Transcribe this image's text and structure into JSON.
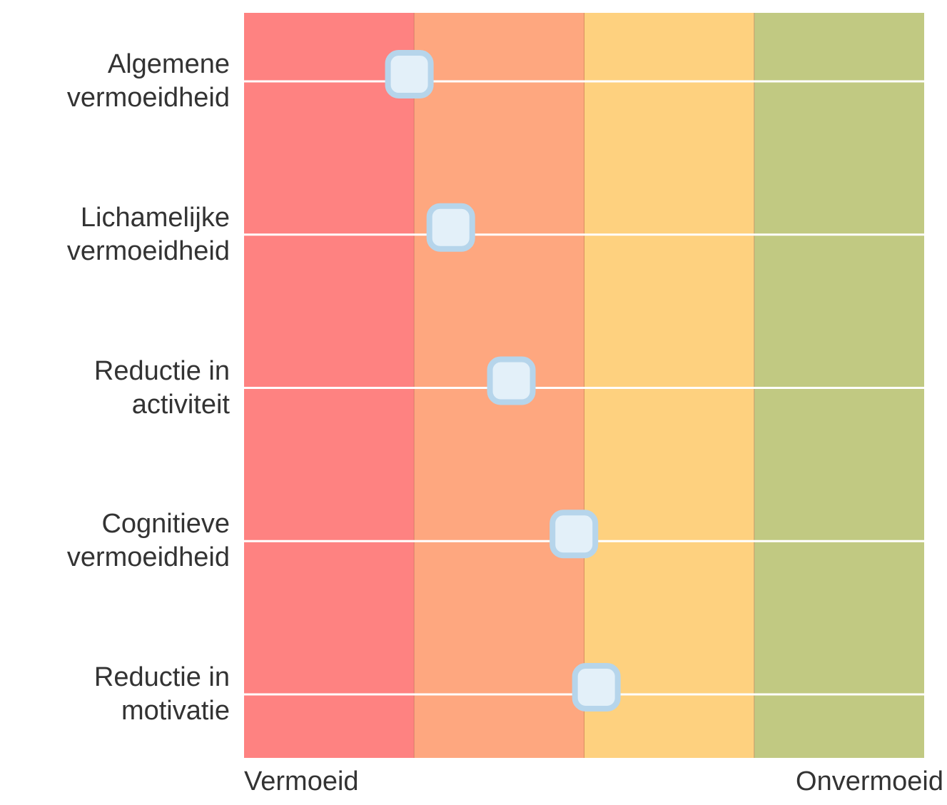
{
  "chart_data": {
    "type": "dot",
    "categories": [
      "Algemene vermoeidheid",
      "Lichamelijke vermoeidheid",
      "Reductie in activiteit",
      "Cognitieve vermoeidheid",
      "Reductie in motivatie"
    ],
    "values": [
      24.3,
      30.4,
      39.3,
      48.5,
      51.8
    ],
    "xlim": [
      0,
      100
    ],
    "bands": [
      {
        "from": 0,
        "to": 25,
        "color": "#fe8281"
      },
      {
        "from": 25,
        "to": 50,
        "color": "#fea77f"
      },
      {
        "from": 50,
        "to": 75,
        "color": "#fed17f"
      },
      {
        "from": 75,
        "to": 100,
        "color": "#c1c982"
      }
    ],
    "xlabels": {
      "low": "Vermoeid",
      "high": "Onvermoeid"
    },
    "marker_color": "#e3f0f9",
    "marker_border": "#b6d5eb"
  }
}
